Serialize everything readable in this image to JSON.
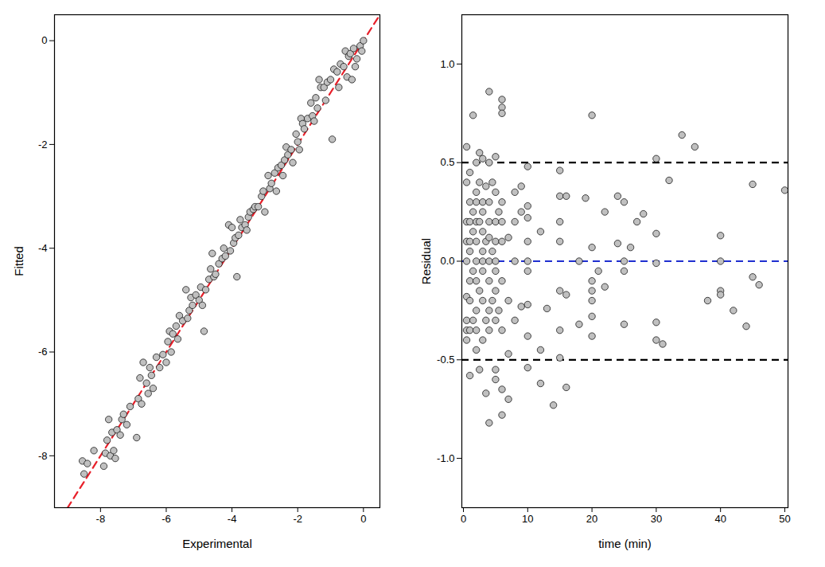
{
  "chart_data": [
    {
      "type": "scatter",
      "x_label": "Experimental",
      "y_label": "Fitted",
      "xlim": [
        -9.4,
        0.5
      ],
      "ylim": [
        -9,
        0.5
      ],
      "xticks": [
        -8,
        -6,
        -4,
        -2,
        0
      ],
      "yticks": [
        -8,
        -6,
        -4,
        -2,
        0
      ],
      "color": "#c0c0c0",
      "marker": "circle",
      "lines": [
        {
          "x": [
            -9.4,
            0.5
          ],
          "y": [
            -9.4,
            0.5
          ],
          "color": "#e8202a",
          "line_style": "dashed"
        }
      ],
      "points": [
        [
          -8.55,
          -8.1
        ],
        [
          -8.5,
          -8.35
        ],
        [
          -8.4,
          -8.15
        ],
        [
          -8.2,
          -7.9
        ],
        [
          -7.9,
          -8.2
        ],
        [
          -7.85,
          -7.95
        ],
        [
          -7.8,
          -7.7
        ],
        [
          -7.75,
          -7.3
        ],
        [
          -7.7,
          -8.0
        ],
        [
          -7.65,
          -7.55
        ],
        [
          -7.6,
          -7.9
        ],
        [
          -7.55,
          -8.05
        ],
        [
          -7.5,
          -7.5
        ],
        [
          -7.4,
          -7.6
        ],
        [
          -7.35,
          -7.3
        ],
        [
          -7.3,
          -7.2
        ],
        [
          -7.2,
          -7.4
        ],
        [
          -7.1,
          -7.05
        ],
        [
          -6.9,
          -7.65
        ],
        [
          -6.85,
          -6.9
        ],
        [
          -6.8,
          -6.5
        ],
        [
          -6.75,
          -7.0
        ],
        [
          -6.7,
          -6.2
        ],
        [
          -6.6,
          -6.6
        ],
        [
          -6.55,
          -6.8
        ],
        [
          -6.5,
          -6.3
        ],
        [
          -6.45,
          -6.45
        ],
        [
          -6.4,
          -6.7
        ],
        [
          -6.3,
          -6.1
        ],
        [
          -6.2,
          -6.3
        ],
        [
          -6.1,
          -6.05
        ],
        [
          -6.0,
          -6.2
        ],
        [
          -5.95,
          -5.8
        ],
        [
          -5.9,
          -5.6
        ],
        [
          -5.85,
          -6.0
        ],
        [
          -5.8,
          -5.65
        ],
        [
          -5.7,
          -5.5
        ],
        [
          -5.65,
          -5.75
        ],
        [
          -5.6,
          -5.3
        ],
        [
          -5.5,
          -5.4
        ],
        [
          -5.4,
          -4.8
        ],
        [
          -5.35,
          -5.35
        ],
        [
          -5.3,
          -5.2
        ],
        [
          -5.25,
          -4.95
        ],
        [
          -5.2,
          -5.1
        ],
        [
          -5.1,
          -4.9
        ],
        [
          -5.0,
          -5.0
        ],
        [
          -4.95,
          -4.75
        ],
        [
          -4.9,
          -5.1
        ],
        [
          -4.85,
          -5.6
        ],
        [
          -4.8,
          -4.8
        ],
        [
          -4.7,
          -4.6
        ],
        [
          -4.65,
          -4.4
        ],
        [
          -4.6,
          -4.1
        ],
        [
          -4.55,
          -4.55
        ],
        [
          -4.5,
          -4.5
        ],
        [
          -4.4,
          -4.3
        ],
        [
          -4.3,
          -4.2
        ],
        [
          -4.25,
          -4.0
        ],
        [
          -4.2,
          -4.15
        ],
        [
          -4.1,
          -3.55
        ],
        [
          -4.05,
          -4.05
        ],
        [
          -4.0,
          -3.6
        ],
        [
          -3.95,
          -3.9
        ],
        [
          -3.9,
          -3.8
        ],
        [
          -3.85,
          -4.55
        ],
        [
          -3.8,
          -3.75
        ],
        [
          -3.75,
          -3.45
        ],
        [
          -3.7,
          -3.6
        ],
        [
          -3.6,
          -3.55
        ],
        [
          -3.55,
          -3.65
        ],
        [
          -3.5,
          -3.4
        ],
        [
          -3.45,
          -3.3
        ],
        [
          -3.35,
          -3.25
        ],
        [
          -3.3,
          -3.2
        ],
        [
          -3.2,
          -3.2
        ],
        [
          -3.1,
          -3.0
        ],
        [
          -3.05,
          -2.9
        ],
        [
          -3.0,
          -3.3
        ],
        [
          -2.9,
          -2.6
        ],
        [
          -2.85,
          -2.85
        ],
        [
          -2.8,
          -2.75
        ],
        [
          -2.7,
          -2.55
        ],
        [
          -2.65,
          -2.9
        ],
        [
          -2.6,
          -2.45
        ],
        [
          -2.5,
          -2.4
        ],
        [
          -2.45,
          -2.6
        ],
        [
          -2.4,
          -2.3
        ],
        [
          -2.35,
          -2.05
        ],
        [
          -2.3,
          -2.2
        ],
        [
          -2.2,
          -2.1
        ],
        [
          -2.15,
          -2.35
        ],
        [
          -2.05,
          -1.8
        ],
        [
          -2.0,
          -1.95
        ],
        [
          -1.95,
          -2.1
        ],
        [
          -1.9,
          -1.5
        ],
        [
          -1.85,
          -1.6
        ],
        [
          -1.8,
          -1.7
        ],
        [
          -1.7,
          -1.5
        ],
        [
          -1.6,
          -1.2
        ],
        [
          -1.55,
          -1.45
        ],
        [
          -1.5,
          -1.55
        ],
        [
          -1.45,
          -1.1
        ],
        [
          -1.4,
          -1.3
        ],
        [
          -1.35,
          -0.75
        ],
        [
          -1.3,
          -0.9
        ],
        [
          -1.2,
          -0.9
        ],
        [
          -1.15,
          -1.15
        ],
        [
          -1.1,
          -0.8
        ],
        [
          -1.0,
          -0.75
        ],
        [
          -0.95,
          -1.9
        ],
        [
          -0.9,
          -0.55
        ],
        [
          -0.8,
          -0.6
        ],
        [
          -0.75,
          -0.9
        ],
        [
          -0.7,
          -0.45
        ],
        [
          -0.6,
          -0.5
        ],
        [
          -0.55,
          -0.2
        ],
        [
          -0.5,
          -0.7
        ],
        [
          -0.45,
          -0.3
        ],
        [
          -0.4,
          -0.25
        ],
        [
          -0.35,
          -0.75
        ],
        [
          -0.3,
          -0.15
        ],
        [
          -0.25,
          -0.5
        ],
        [
          -0.2,
          -0.35
        ],
        [
          -0.1,
          -0.1
        ],
        [
          -0.05,
          -0.2
        ],
        [
          0.0,
          0.0
        ]
      ]
    },
    {
      "type": "scatter",
      "x_label": "time (min)",
      "y_label": "Residual",
      "xlim": [
        -0.25,
        50.5
      ],
      "ylim": [
        -1.25,
        1.25
      ],
      "xticks": [
        0,
        10,
        20,
        30,
        40,
        50
      ],
      "yticks": [
        {
          "value": -1,
          "label": "-1.0"
        },
        {
          "value": -0.5,
          "label": "-0.5"
        },
        {
          "value": 0,
          "label": "0.0"
        },
        {
          "value": 0.5,
          "label": "0.5"
        },
        {
          "value": 1,
          "label": "1.0"
        }
      ],
      "color": "#c0c0c0",
      "marker": "circle",
      "hlines": [
        {
          "y": 0.5,
          "color": "#000000",
          "line_style": "dashed"
        },
        {
          "y": 0,
          "color": "#1f2fd0",
          "line_style": "dashed"
        },
        {
          "y": -0.5,
          "color": "#000000",
          "line_style": "dashed"
        }
      ],
      "points": [
        [
          0.5,
          0.58
        ],
        [
          0.5,
          0.2
        ],
        [
          0.5,
          -0.35
        ],
        [
          0.5,
          -0.18
        ],
        [
          0.5,
          0.0
        ],
        [
          0.5,
          0.1
        ],
        [
          0.5,
          0.4
        ],
        [
          0.5,
          -0.4
        ],
        [
          0.5,
          -0.3
        ],
        [
          1,
          0.3
        ],
        [
          1,
          0.1
        ],
        [
          1,
          -0.1
        ],
        [
          1,
          0.2
        ],
        [
          1,
          -0.58
        ],
        [
          1,
          -0.35
        ],
        [
          1,
          0.05
        ],
        [
          1,
          0.45
        ],
        [
          1,
          -0.2
        ],
        [
          1.5,
          0.74
        ],
        [
          1.5,
          0.25
        ],
        [
          1.5,
          -0.05
        ],
        [
          1.5,
          0.15
        ],
        [
          1.5,
          -0.3
        ],
        [
          2,
          0.5
        ],
        [
          2,
          0.35
        ],
        [
          2,
          0.3
        ],
        [
          2,
          0.1
        ],
        [
          2,
          -0.1
        ],
        [
          2,
          -0.25
        ],
        [
          2,
          -0.45
        ],
        [
          2,
          0.2
        ],
        [
          2,
          0.0
        ],
        [
          2,
          -0.35
        ],
        [
          2.5,
          0.55
        ],
        [
          2.5,
          0.4
        ],
        [
          2.5,
          0.2
        ],
        [
          2.5,
          -0.15
        ],
        [
          2.5,
          -0.55
        ],
        [
          3,
          0.52
        ],
        [
          3,
          0.3
        ],
        [
          3,
          0.15
        ],
        [
          3,
          0.05
        ],
        [
          3,
          -0.05
        ],
        [
          3,
          -0.2
        ],
        [
          3,
          -0.4
        ],
        [
          3,
          0.25
        ],
        [
          3,
          0.0
        ],
        [
          3.5,
          0.38
        ],
        [
          3.5,
          -0.3
        ],
        [
          3.5,
          -0.67
        ],
        [
          3.5,
          0.1
        ],
        [
          4,
          0.86
        ],
        [
          4,
          0.5
        ],
        [
          4,
          0.3
        ],
        [
          4,
          0.2
        ],
        [
          4,
          0.0
        ],
        [
          4,
          -0.1
        ],
        [
          4,
          -0.25
        ],
        [
          4,
          -0.82
        ],
        [
          4,
          -0.35
        ],
        [
          4,
          0.12
        ],
        [
          4.5,
          0.4
        ],
        [
          4.5,
          -0.2
        ],
        [
          4.5,
          0.05
        ],
        [
          5,
          0.53
        ],
        [
          5,
          0.35
        ],
        [
          5,
          0.2
        ],
        [
          5,
          0.1
        ],
        [
          5,
          -0.05
        ],
        [
          5,
          -0.15
        ],
        [
          5,
          -0.3
        ],
        [
          5,
          -0.55
        ],
        [
          5,
          -0.6
        ],
        [
          5,
          0.0
        ],
        [
          5.5,
          0.25
        ],
        [
          5.5,
          -0.25
        ],
        [
          6,
          0.82
        ],
        [
          6,
          0.78
        ],
        [
          6,
          0.75
        ],
        [
          6,
          0.3
        ],
        [
          6,
          0.1
        ],
        [
          6,
          -0.1
        ],
        [
          6,
          -0.35
        ],
        [
          6,
          -0.65
        ],
        [
          6,
          -0.78
        ],
        [
          6,
          0.2
        ],
        [
          7,
          0.12
        ],
        [
          7,
          -0.2
        ],
        [
          7,
          -0.7
        ],
        [
          7,
          -0.47
        ],
        [
          8,
          0.35
        ],
        [
          8,
          0.0
        ],
        [
          8,
          -0.3
        ],
        [
          8,
          0.2
        ],
        [
          9,
          0.38
        ],
        [
          9,
          -0.23
        ],
        [
          9,
          0.25
        ],
        [
          10,
          0.48
        ],
        [
          10,
          0.28
        ],
        [
          10,
          0.22
        ],
        [
          10,
          0.1
        ],
        [
          10,
          0.0
        ],
        [
          10,
          -0.05
        ],
        [
          10,
          -0.22
        ],
        [
          10,
          -0.54
        ],
        [
          10,
          -0.38
        ],
        [
          12,
          0.15
        ],
        [
          12,
          -0.62
        ],
        [
          12,
          -0.45
        ],
        [
          13,
          -0.24
        ],
        [
          14,
          -0.73
        ],
        [
          15,
          0.46
        ],
        [
          15,
          0.33
        ],
        [
          15,
          0.2
        ],
        [
          15,
          0.1
        ],
        [
          15,
          -0.15
        ],
        [
          15,
          -0.35
        ],
        [
          15,
          -0.49
        ],
        [
          16,
          0.33
        ],
        [
          16,
          -0.64
        ],
        [
          16,
          -0.17
        ],
        [
          18,
          0.0
        ],
        [
          18,
          -0.32
        ],
        [
          19,
          0.32
        ],
        [
          20,
          0.74
        ],
        [
          20,
          0.07
        ],
        [
          20,
          -0.1
        ],
        [
          20,
          -0.15
        ],
        [
          20,
          -0.2
        ],
        [
          20,
          -0.28
        ],
        [
          20,
          -0.38
        ],
        [
          21,
          -0.05
        ],
        [
          22,
          -0.13
        ],
        [
          22,
          0.25
        ],
        [
          24,
          0.33
        ],
        [
          24,
          0.09
        ],
        [
          25,
          0.3
        ],
        [
          25,
          0.0
        ],
        [
          25,
          -0.05
        ],
        [
          25,
          -0.32
        ],
        [
          26,
          0.07
        ],
        [
          27,
          0.2
        ],
        [
          28,
          0.24
        ],
        [
          30,
          0.52
        ],
        [
          30,
          0.14
        ],
        [
          30,
          -0.01
        ],
        [
          30,
          -0.31
        ],
        [
          30,
          -0.4
        ],
        [
          31,
          -0.42
        ],
        [
          32,
          0.41
        ],
        [
          34,
          0.64
        ],
        [
          36,
          0.58
        ],
        [
          38,
          -0.2
        ],
        [
          40,
          0.13
        ],
        [
          40,
          0.0
        ],
        [
          40,
          -0.15
        ],
        [
          40,
          -0.17
        ],
        [
          42,
          -0.25
        ],
        [
          44,
          -0.33
        ],
        [
          45,
          0.39
        ],
        [
          45,
          -0.08
        ],
        [
          46,
          -0.12
        ],
        [
          50,
          0.36
        ]
      ]
    }
  ]
}
